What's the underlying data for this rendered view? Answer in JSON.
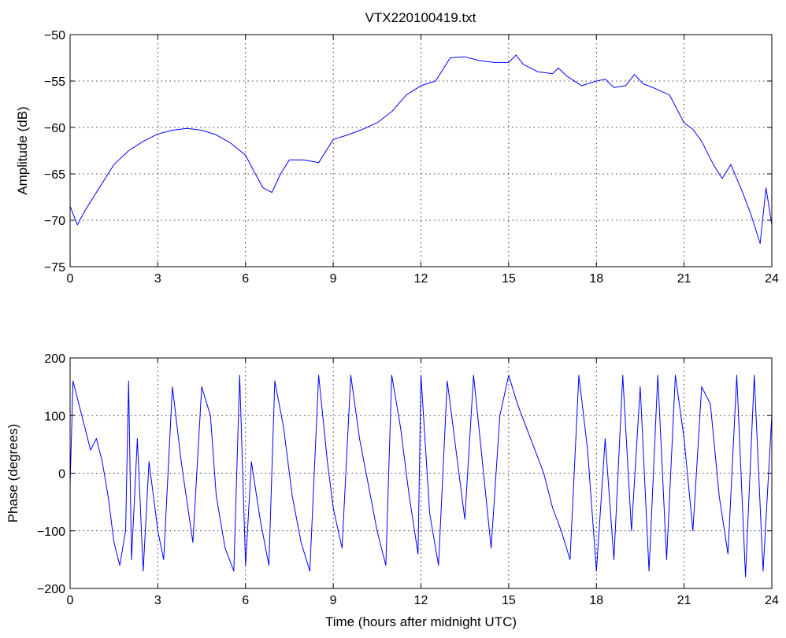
{
  "figure": {
    "title": "VTX220100419.txt"
  },
  "chart_data": [
    {
      "type": "line",
      "title": "VTX220100419.txt",
      "xlabel": "",
      "ylabel": "Amplitude (dB)",
      "xlim": [
        0,
        24
      ],
      "ylim": [
        -75,
        -50
      ],
      "xticks": [
        0,
        3,
        6,
        9,
        12,
        15,
        18,
        21,
        24
      ],
      "yticks": [
        -50,
        -55,
        -60,
        -65,
        -70,
        -75
      ],
      "xtick_labels": [
        "0",
        "3",
        "6",
        "9",
        "12",
        "15",
        "18",
        "21",
        "24"
      ],
      "ytick_labels": [
        "−50",
        "−55",
        "−60",
        "−65",
        "−70",
        "−75"
      ],
      "grid": true,
      "color": "#0000ff",
      "series": [
        {
          "x": [
            0,
            0.25,
            0.5,
            1,
            1.5,
            2,
            2.5,
            3,
            3.5,
            4,
            4.5,
            5,
            5.5,
            6,
            6.3,
            6.6,
            6.9,
            7.2,
            7.5,
            8,
            8.5,
            9,
            9.5,
            10,
            10.5,
            11,
            11.5,
            12,
            12.5,
            13,
            13.5,
            14,
            14.5,
            15,
            15.25,
            15.5,
            16,
            16.5,
            16.7,
            17,
            17.5,
            18,
            18.3,
            18.6,
            19,
            19.3,
            19.6,
            20,
            20.5,
            21,
            21.3,
            21.6,
            22,
            22.3,
            22.6,
            23,
            23.3,
            23.6,
            23.8,
            24
          ],
          "y": [
            -68.5,
            -70.5,
            -69,
            -66.5,
            -64,
            -62.5,
            -61.5,
            -60.7,
            -60.3,
            -60.1,
            -60.3,
            -60.8,
            -61.7,
            -63,
            -64.8,
            -66.5,
            -67,
            -65,
            -63.5,
            -63.5,
            -63.8,
            -61.3,
            -60.8,
            -60.2,
            -59.5,
            -58.3,
            -56.5,
            -55.5,
            -55,
            -52.5,
            -52.4,
            -52.8,
            -53,
            -53,
            -52.2,
            -53.2,
            -54,
            -54.2,
            -53.6,
            -54.5,
            -55.5,
            -55,
            -54.8,
            -55.7,
            -55.5,
            -54.3,
            -55.3,
            -55.8,
            -56.5,
            -59.5,
            -60.2,
            -61.5,
            -64,
            -65.5,
            -64,
            -67,
            -69.5,
            -72.5,
            -66.5,
            -70.5
          ]
        }
      ]
    },
    {
      "type": "line",
      "title": "",
      "xlabel": "Time (hours after midnight UTC)",
      "ylabel": "Phase (degrees)",
      "xlim": [
        0,
        24
      ],
      "ylim": [
        -200,
        200
      ],
      "xticks": [
        0,
        3,
        6,
        9,
        12,
        15,
        18,
        21,
        24
      ],
      "yticks": [
        200,
        100,
        0,
        -100,
        -200
      ],
      "xtick_labels": [
        "0",
        "3",
        "6",
        "9",
        "12",
        "15",
        "18",
        "21",
        "24"
      ],
      "ytick_labels": [
        "200",
        "100",
        "0",
        "−100",
        "−200"
      ],
      "grid": true,
      "color": "#0000ff",
      "series": [
        {
          "x": [
            0,
            0.1,
            0.2,
            0.3,
            0.5,
            0.7,
            0.9,
            1.1,
            1.3,
            1.5,
            1.7,
            1.9,
            2.0,
            2.1,
            2.3,
            2.5,
            2.7,
            2.9,
            3.0,
            3.2,
            3.5,
            3.8,
            4.0,
            4.2,
            4.5,
            4.8,
            5.0,
            5.3,
            5.6,
            5.8,
            6.0,
            6.2,
            6.5,
            6.8,
            7.0,
            7.3,
            7.6,
            7.9,
            8.2,
            8.5,
            8.8,
            9.0,
            9.3,
            9.6,
            9.9,
            10.2,
            10.5,
            10.8,
            11.0,
            11.3,
            11.6,
            11.9,
            12.0,
            12.3,
            12.6,
            12.9,
            13.2,
            13.5,
            13.8,
            14.1,
            14.4,
            14.7,
            15.0,
            15.3,
            15.6,
            15.9,
            16.2,
            16.5,
            16.8,
            17.1,
            17.4,
            17.7,
            18.0,
            18.3,
            18.6,
            18.9,
            19.2,
            19.5,
            19.8,
            20.1,
            20.4,
            20.7,
            21.0,
            21.3,
            21.6,
            21.9,
            22.2,
            22.5,
            22.8,
            23.1,
            23.4,
            23.7,
            24.0
          ],
          "y": [
            -20,
            160,
            140,
            120,
            80,
            40,
            60,
            20,
            -40,
            -120,
            -160,
            -100,
            160,
            -150,
            60,
            -170,
            20,
            -60,
            -100,
            -150,
            150,
            20,
            -50,
            -120,
            150,
            100,
            -40,
            -130,
            -170,
            170,
            -160,
            20,
            -80,
            -160,
            160,
            80,
            -40,
            -120,
            -170,
            170,
            20,
            -60,
            -130,
            170,
            60,
            -20,
            -100,
            -160,
            170,
            80,
            -40,
            -140,
            170,
            -70,
            -160,
            160,
            40,
            -80,
            170,
            20,
            -130,
            100,
            170,
            120,
            80,
            40,
            0,
            -60,
            -100,
            -150,
            170,
            40,
            -170,
            60,
            -150,
            170,
            -100,
            150,
            -170,
            170,
            -150,
            170,
            60,
            -100,
            150,
            120,
            -40,
            -140,
            170,
            -180,
            170,
            -170,
            100
          ]
        }
      ]
    }
  ]
}
